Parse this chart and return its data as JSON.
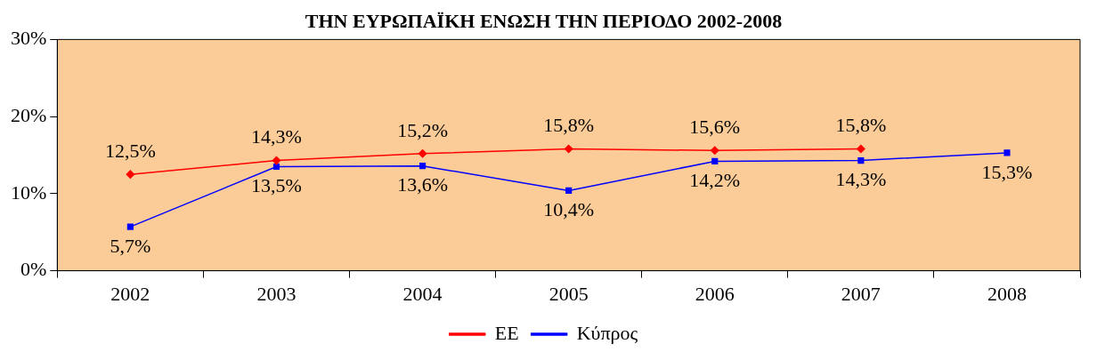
{
  "chart_data": {
    "type": "line",
    "title": "ΤΗΝ ΕΥΡΩΠΑΪΚΗ ΕΝΩΣΗ ΤΗΝ ΠΕΡΙΟΔΟ 2002-2008",
    "categories": [
      "2002",
      "2003",
      "2004",
      "2005",
      "2006",
      "2007",
      "2008"
    ],
    "series": [
      {
        "name": "ΕΕ",
        "color": "#ff0000",
        "marker": "diamond",
        "values": [
          12.5,
          14.3,
          15.2,
          15.8,
          15.6,
          15.8,
          null
        ],
        "value_labels": [
          "12,5%",
          "14,3%",
          "15,2%",
          "15,8%",
          "15,6%",
          "15,8%",
          null
        ]
      },
      {
        "name": "Κύπρος",
        "color": "#0000ff",
        "marker": "square",
        "values": [
          5.7,
          13.5,
          13.6,
          10.4,
          14.2,
          14.3,
          15.3
        ],
        "value_labels": [
          "5,7%",
          "13,5%",
          "13,6%",
          "10,4%",
          "14,2%",
          "14,3%",
          "15,3%"
        ]
      }
    ],
    "ylim": [
      0,
      30
    ],
    "yticks": [
      {
        "value": 0,
        "label": "0%"
      },
      {
        "value": 10,
        "label": "10%"
      },
      {
        "value": 20,
        "label": "20%"
      },
      {
        "value": 30,
        "label": "30%"
      }
    ],
    "legend": "bottom"
  }
}
